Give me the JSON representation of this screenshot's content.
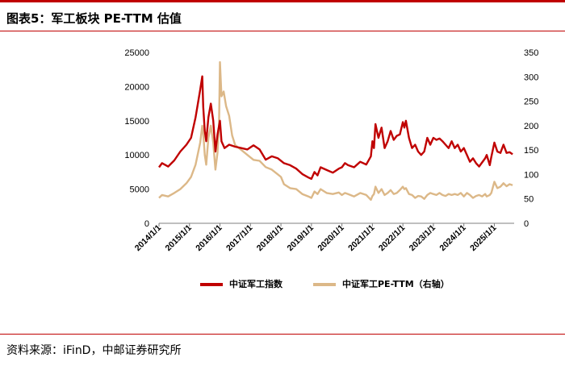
{
  "header": {
    "title": "图表5：军工板块 PE-TTM 估值"
  },
  "footer": {
    "source": "资料来源：iFinD，中邮证券研究所"
  },
  "colors": {
    "accent_red": "#c00000",
    "series_index": "#c00000",
    "series_pe": "#dcb888"
  },
  "chart_data": {
    "type": "line",
    "title": "",
    "x_tick_labels": [
      "2014/1/1",
      "2015/1/1",
      "2016/1/1",
      "2017/1/1",
      "2018/1/1",
      "2019/1/1",
      "2020/1/1",
      "2021/1/1",
      "2022/1/1",
      "2023/1/1",
      "2024/1/1",
      "2025/1/1"
    ],
    "x_range": [
      2014.0,
      2025.65
    ],
    "y_left": {
      "min": 0,
      "max": 25000,
      "ticks": [
        0,
        5000,
        10000,
        15000,
        20000,
        25000
      ]
    },
    "y_right": {
      "min": 0,
      "max": 350,
      "ticks": [
        0,
        50,
        100,
        150,
        200,
        250,
        300,
        350
      ],
      "label": "右轴"
    },
    "legend_position": "bottom",
    "grid": false,
    "series": [
      {
        "name": "中证军工指数",
        "axis": "left",
        "x": [
          2014.0,
          2014.1,
          2014.3,
          2014.5,
          2014.7,
          2014.9,
          2015.05,
          2015.2,
          2015.35,
          2015.42,
          2015.45,
          2015.5,
          2015.55,
          2015.62,
          2015.7,
          2015.78,
          2015.85,
          2015.92,
          2016.0,
          2016.05,
          2016.15,
          2016.3,
          2016.5,
          2016.7,
          2016.9,
          2017.1,
          2017.3,
          2017.5,
          2017.7,
          2017.9,
          2018.1,
          2018.3,
          2018.5,
          2018.7,
          2018.9,
          2019.0,
          2019.1,
          2019.2,
          2019.3,
          2019.5,
          2019.7,
          2019.9,
          2020.0,
          2020.1,
          2020.2,
          2020.4,
          2020.6,
          2020.8,
          2020.95,
          2021.0,
          2021.05,
          2021.1,
          2021.2,
          2021.3,
          2021.4,
          2021.5,
          2021.6,
          2021.7,
          2021.8,
          2021.9,
          2022.0,
          2022.05,
          2022.1,
          2022.2,
          2022.3,
          2022.4,
          2022.5,
          2022.6,
          2022.7,
          2022.8,
          2022.9,
          2023.0,
          2023.1,
          2023.2,
          2023.3,
          2023.4,
          2023.5,
          2023.6,
          2023.7,
          2023.8,
          2023.9,
          2024.0,
          2024.1,
          2024.2,
          2024.3,
          2024.4,
          2024.5,
          2024.6,
          2024.7,
          2024.75,
          2024.85,
          2024.9,
          2025.0,
          2025.1,
          2025.2,
          2025.3,
          2025.4,
          2025.5,
          2025.6
        ],
        "values": [
          8200,
          8800,
          8300,
          9200,
          10500,
          11500,
          12500,
          15500,
          19500,
          21500,
          17000,
          13500,
          12000,
          15500,
          17500,
          15000,
          10500,
          13000,
          15000,
          12000,
          11000,
          11500,
          11200,
          11000,
          10800,
          11400,
          10800,
          9300,
          9800,
          9500,
          8800,
          8500,
          8000,
          7200,
          6700,
          6500,
          7500,
          7000,
          8200,
          7800,
          7400,
          8000,
          8200,
          8800,
          8500,
          8200,
          9000,
          8600,
          9800,
          12000,
          11000,
          14500,
          12500,
          14000,
          11000,
          12000,
          13500,
          12200,
          12800,
          13000,
          14800,
          14000,
          15000,
          12500,
          11000,
          11500,
          10500,
          10000,
          10500,
          12500,
          11500,
          12500,
          12200,
          12400,
          12000,
          11500,
          11000,
          12000,
          11000,
          11500,
          10500,
          11000,
          10000,
          9000,
          9500,
          8800,
          8300,
          8900,
          9500,
          10000,
          8500,
          9700,
          11800,
          10500,
          10300,
          11500,
          10300,
          10400,
          10100
        ]
      },
      {
        "name": "中证军工PE-TTM（右轴）",
        "axis": "right",
        "x": [
          2014.0,
          2014.1,
          2014.3,
          2014.5,
          2014.7,
          2014.9,
          2015.05,
          2015.2,
          2015.35,
          2015.42,
          2015.45,
          2015.5,
          2015.55,
          2015.62,
          2015.7,
          2015.78,
          2015.85,
          2015.92,
          2015.97,
          2016.0,
          2016.05,
          2016.12,
          2016.2,
          2016.3,
          2016.4,
          2016.5,
          2016.7,
          2016.9,
          2017.1,
          2017.3,
          2017.5,
          2017.7,
          2017.9,
          2018.0,
          2018.1,
          2018.3,
          2018.5,
          2018.7,
          2018.9,
          2019.0,
          2019.1,
          2019.2,
          2019.3,
          2019.5,
          2019.7,
          2019.9,
          2020.0,
          2020.1,
          2020.2,
          2020.4,
          2020.6,
          2020.8,
          2020.95,
          2021.0,
          2021.05,
          2021.1,
          2021.2,
          2021.3,
          2021.4,
          2021.5,
          2021.6,
          2021.7,
          2021.8,
          2021.9,
          2022.0,
          2022.05,
          2022.1,
          2022.2,
          2022.3,
          2022.4,
          2022.5,
          2022.6,
          2022.7,
          2022.8,
          2022.9,
          2023.0,
          2023.1,
          2023.2,
          2023.3,
          2023.4,
          2023.5,
          2023.6,
          2023.7,
          2023.8,
          2023.9,
          2024.0,
          2024.1,
          2024.2,
          2024.3,
          2024.4,
          2024.5,
          2024.6,
          2024.7,
          2024.75,
          2024.85,
          2024.9,
          2025.0,
          2025.1,
          2025.2,
          2025.3,
          2025.4,
          2025.5,
          2025.6
        ],
        "values": [
          52,
          58,
          55,
          62,
          70,
          82,
          95,
          120,
          165,
          200,
          185,
          140,
          120,
          175,
          200,
          165,
          110,
          145,
          205,
          330,
          260,
          270,
          240,
          220,
          180,
          160,
          150,
          140,
          130,
          128,
          115,
          110,
          100,
          95,
          80,
          72,
          70,
          60,
          55,
          52,
          65,
          60,
          70,
          62,
          60,
          63,
          58,
          62,
          60,
          55,
          62,
          58,
          48,
          56,
          60,
          75,
          62,
          70,
          58,
          62,
          68,
          60,
          62,
          68,
          75,
          70,
          72,
          60,
          58,
          52,
          56,
          55,
          50,
          58,
          62,
          60,
          58,
          62,
          58,
          56,
          60,
          58,
          60,
          58,
          62,
          55,
          62,
          58,
          52,
          56,
          58,
          55,
          60,
          55,
          58,
          62,
          85,
          72,
          75,
          82,
          76,
          80,
          78
        ]
      }
    ]
  }
}
